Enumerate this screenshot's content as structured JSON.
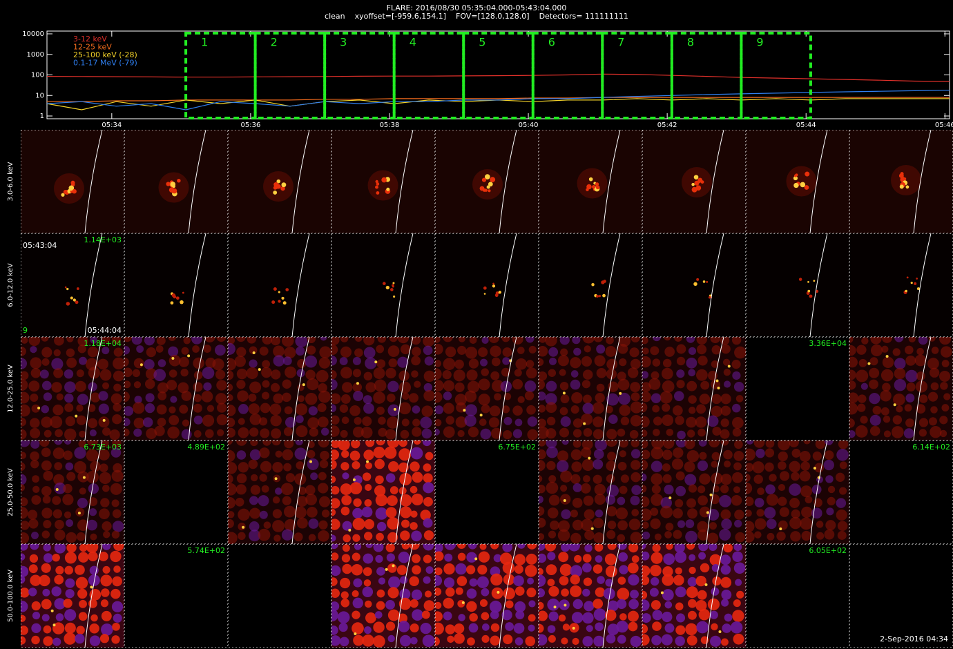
{
  "chart_data": {
    "type": "line",
    "title": "FLARE: 2016/08/30 05:35:04.000-05:43:04.000",
    "subtitle": "clean    xyoffset=[-959.6,154.1]    FOV=[128.0,128.0]    Detectors= 111111111",
    "x": [
      "05:33:04",
      "05:33:34",
      "05:34:04",
      "05:34:34",
      "05:35:04",
      "05:35:34",
      "05:36:04",
      "05:36:34",
      "05:37:04",
      "05:37:34",
      "05:38:04",
      "05:38:34",
      "05:39:04",
      "05:39:34",
      "05:40:04",
      "05:40:34",
      "05:41:04",
      "05:41:34",
      "05:42:04",
      "05:42:34",
      "05:43:04",
      "05:43:34",
      "05:44:04",
      "05:44:34",
      "05:45:04",
      "05:45:34",
      "05:46:04"
    ],
    "xlim": [
      "05:33:04",
      "05:46:04"
    ],
    "xticks": [
      {
        "value": "05:34:00",
        "label": "05:34"
      },
      {
        "value": "05:36:00",
        "label": "05:36"
      },
      {
        "value": "05:38:00",
        "label": "05:38"
      },
      {
        "value": "05:40:00",
        "label": "05:40"
      },
      {
        "value": "05:42:00",
        "label": "05:42"
      },
      {
        "value": "05:44:00",
        "label": "05:44"
      },
      {
        "value": "05:46:00",
        "label": "05:46"
      }
    ],
    "ylim": [
      1,
      10000
    ],
    "yticks": [
      1,
      10,
      100,
      1000,
      10000
    ],
    "ylog": true,
    "series": [
      {
        "name": "3-12 keV",
        "color": "#e0302a",
        "values": [
          85,
          84,
          82,
          80,
          78,
          78,
          80,
          82,
          84,
          86,
          88,
          88,
          90,
          92,
          95,
          100,
          110,
          105,
          95,
          85,
          75,
          70,
          65,
          60,
          55,
          50,
          48
        ]
      },
      {
        "name": "12-25 keV",
        "color": "#f26b1d",
        "values": [
          5,
          5,
          5.5,
          5.5,
          6,
          6,
          6,
          6,
          6.5,
          6.5,
          7,
          7,
          7,
          7,
          7.5,
          7.5,
          8,
          8,
          8,
          8,
          8,
          8,
          8,
          8,
          8,
          8,
          8
        ]
      },
      {
        "name": "25-100 keV (-28)",
        "color": "#f2d22a",
        "values": [
          4,
          2,
          5,
          3,
          6,
          4,
          6,
          3,
          5,
          6,
          4,
          6,
          5,
          6,
          5,
          6,
          6,
          7,
          6,
          7,
          6,
          7,
          6,
          7,
          7,
          7,
          7
        ]
      },
      {
        "name": "0.1-17 MeV (-79)",
        "color": "#2f7ff0",
        "values": [
          4,
          5,
          3,
          4,
          2,
          5,
          4,
          3,
          5,
          4,
          5,
          5,
          6,
          6,
          7,
          7,
          8,
          9,
          10,
          11,
          12,
          13,
          14,
          15,
          16,
          17,
          18
        ]
      }
    ],
    "intervals": [
      {
        "label": "1",
        "start": "05:35:04",
        "end": "05:36:04"
      },
      {
        "label": "2",
        "start": "05:36:04",
        "end": "05:37:04"
      },
      {
        "label": "3",
        "start": "05:37:04",
        "end": "05:38:04"
      },
      {
        "label": "4",
        "start": "05:38:04",
        "end": "05:39:04"
      },
      {
        "label": "5",
        "start": "05:39:04",
        "end": "05:40:04"
      },
      {
        "label": "6",
        "start": "05:40:04",
        "end": "05:41:04"
      },
      {
        "label": "7",
        "start": "05:41:04",
        "end": "05:42:04"
      },
      {
        "label": "8",
        "start": "05:42:04",
        "end": "05:43:04"
      },
      {
        "label": "9",
        "start": "05:43:04",
        "end": "05:44:04"
      }
    ]
  },
  "image_grid": {
    "rows": [
      {
        "label": "3.0-6.0 keV",
        "panels": [
          null,
          null,
          null,
          null,
          null,
          null,
          null,
          null,
          null
        ]
      },
      {
        "label": "6.0-12.0 keV",
        "panels": [
          {
            "start": "05:43:04",
            "max": "1.14E+03",
            "interval": "9",
            "end": "05:44:04"
          },
          null,
          null,
          null,
          null,
          null,
          null,
          null,
          null
        ]
      },
      {
        "label": "12.0-25.0 keV",
        "panels": [
          {
            "max": "1.18E+04"
          },
          null,
          null,
          null,
          null,
          null,
          null,
          {
            "max": "3.36E+04"
          },
          null
        ]
      },
      {
        "label": "25.0-50.0 keV",
        "panels": [
          {
            "max": "6.73E+03"
          },
          {
            "max": "4.89E+02"
          },
          null,
          null,
          {
            "max": "6.75E+02"
          },
          null,
          null,
          null,
          {
            "max": "6.14E+02"
          }
        ]
      },
      {
        "label": "50.0-100.0 keV",
        "panels": [
          null,
          {
            "max": "5.74E+02"
          },
          null,
          null,
          null,
          null,
          null,
          {
            "max": "6.05E+02"
          },
          null
        ]
      }
    ]
  },
  "footer": "2-Sep-2016 04:34"
}
